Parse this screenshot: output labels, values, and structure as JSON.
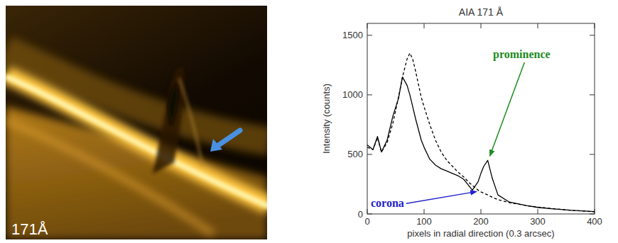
{
  "image_panel": {
    "label": "171Å"
  },
  "chart_data": {
    "type": "line",
    "title": "AIA 171 Å",
    "x_label": "pixels in radial direction (0.3 arcsec)",
    "y_label": "Intensity (counts)",
    "x": [
      0,
      10,
      18,
      25,
      35,
      45,
      55,
      62,
      70,
      75,
      80,
      85,
      95,
      100,
      110,
      120,
      130,
      140,
      150,
      160,
      170,
      180,
      185,
      195,
      200,
      205,
      212,
      220,
      230,
      250,
      280,
      300,
      320,
      360,
      400
    ],
    "series": [
      {
        "color": "#000000",
        "line_style": "solid",
        "values": [
          580,
          540,
          650,
          520,
          620,
          820,
          970,
          1150,
          1080,
          1000,
          900,
          800,
          620,
          560,
          460,
          410,
          380,
          360,
          340,
          320,
          290,
          230,
          200,
          270,
          340,
          400,
          450,
          300,
          160,
          100,
          70,
          55,
          45,
          30,
          20
        ]
      },
      {
        "color": "#000000",
        "line_style": "dashed",
        "values": [
          560,
          540,
          640,
          520,
          600,
          760,
          980,
          1150,
          1300,
          1350,
          1300,
          1200,
          980,
          900,
          750,
          620,
          520,
          450,
          400,
          350,
          310,
          260,
          240,
          200,
          185,
          175,
          160,
          140,
          120,
          95,
          70,
          58,
          48,
          30,
          18
        ]
      }
    ],
    "annotations": [
      {
        "text": "prominence",
        "color": "#1e8c1e"
      },
      {
        "text": "corona",
        "color": "#2222cc"
      }
    ],
    "xlim": [
      0,
      400
    ],
    "xticks": [
      0,
      100,
      200,
      300,
      400
    ],
    "ylim": [
      0,
      1600
    ],
    "yticks": [
      0,
      500,
      1000,
      1500
    ],
    "grid": false
  }
}
